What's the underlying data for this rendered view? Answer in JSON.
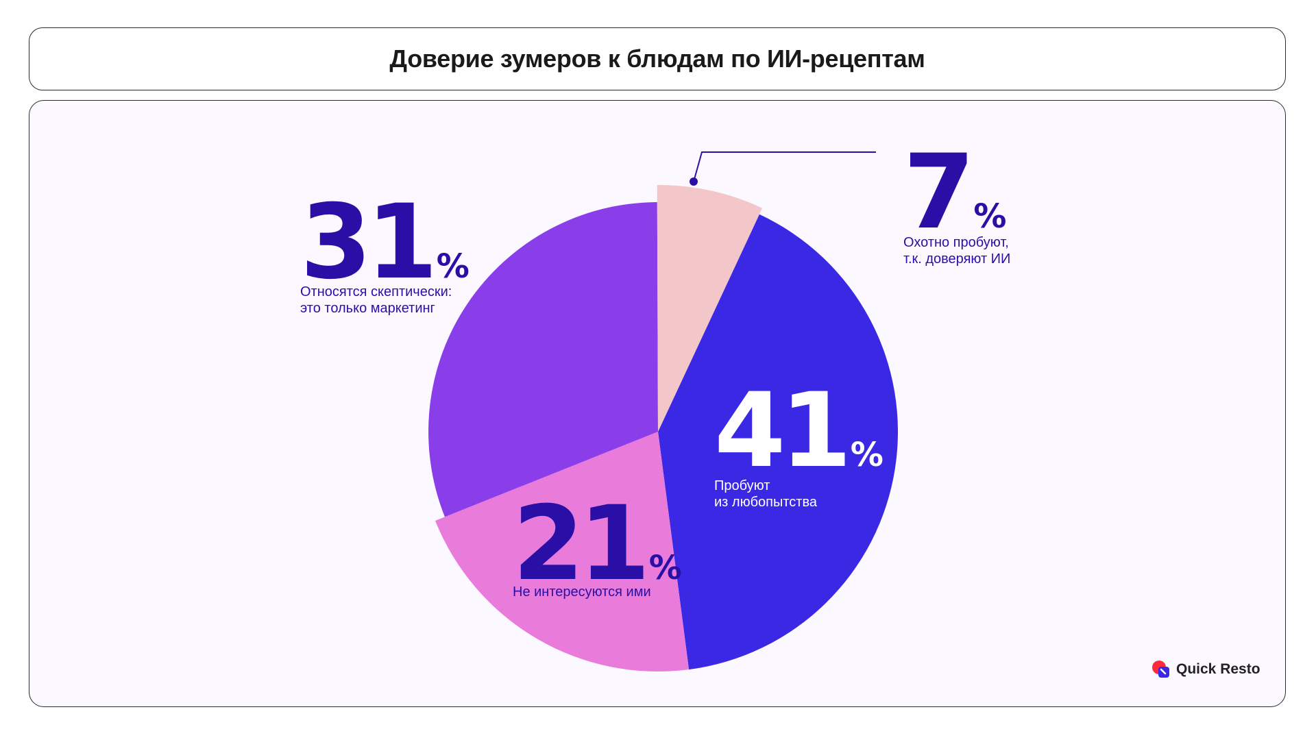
{
  "header": {
    "title": "Доверие зумеров к блюдам по ИИ-рецептам"
  },
  "chart_data": {
    "type": "pie",
    "title": "Доверие зумеров к блюдам по ИИ-рецептам",
    "unit": "%",
    "slices": [
      {
        "key": "curious",
        "value": 41,
        "label_lines": [
          "Пробуют",
          "из любопытства"
        ],
        "color": "#3a28e5",
        "num_color": "#ffffff",
        "text_color": "#ffffff"
      },
      {
        "key": "not_interested",
        "value": 21,
        "label_lines": [
          "Не интересуются ими"
        ],
        "color": "#e97bdb",
        "num_color": "#2a0fa6",
        "text_color": "#2a0fa6"
      },
      {
        "key": "skeptical",
        "value": 31,
        "label_lines": [
          "Относятся скептически:",
          "это только маркетинг"
        ],
        "color": "#8a3eea",
        "num_color": "#2a0fa6",
        "text_color": "#2a0fa6"
      },
      {
        "key": "trust",
        "value": 7,
        "label_lines": [
          "Охотно пробуют,",
          "т.к. доверяют ИИ"
        ],
        "color": "#f3c6ca",
        "num_color": "#2a0fa6",
        "text_color": "#2a0fa6"
      }
    ]
  },
  "logo": {
    "text": "Quick Resto",
    "colors": {
      "red": "#ff2b3a",
      "blue": "#3a28e5"
    }
  }
}
